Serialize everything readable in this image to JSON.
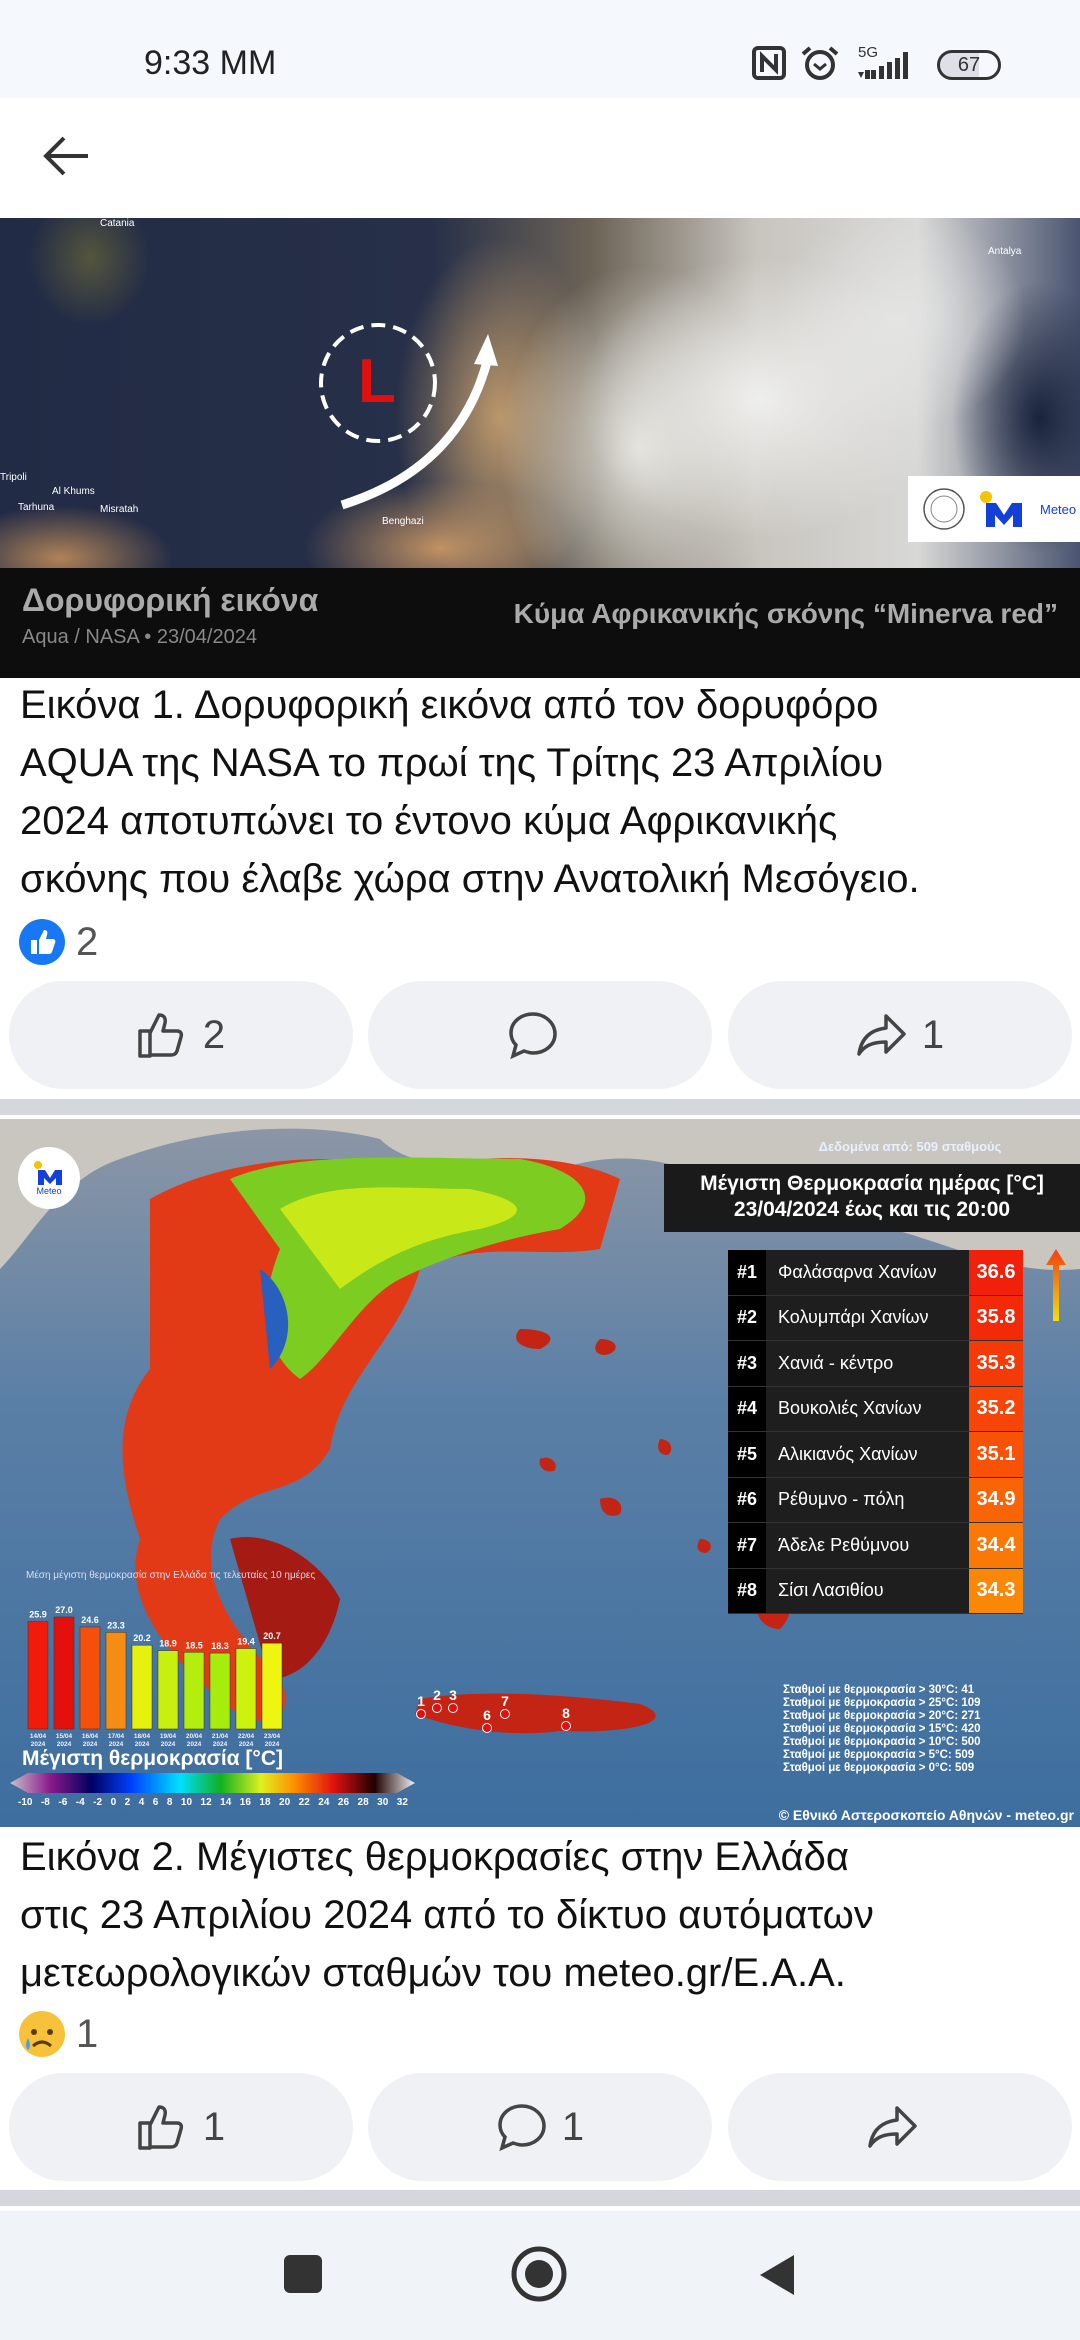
{
  "status": {
    "time": "9:33 MM",
    "network": "5G",
    "battery": "67"
  },
  "header": {
    "back_icon": "arrow-left-icon"
  },
  "post1": {
    "image": {
      "title": "Δορυφορική εικόνα",
      "source": "Aqua / NASA • 23/04/2024",
      "headline": "Κύμα Αφρικανικής σκόνης “Minerva red”",
      "low_label": "L",
      "places": [
        "Catania",
        "Antalya",
        "Tripoli",
        "Al Khums",
        "Tarhuna",
        "Misratah",
        "Benghazi"
      ],
      "logo_text": "Meteo"
    },
    "caption": [
      "Εικόνα 1. Δορυφορική εικόνα από τον δορυφόρο",
      "AQUA της NASA το πρωί της Τρίτης 23 Απριλίου",
      "2024 αποτυπώνει το έντονο κύμα Αφρικανικής",
      "σκόνης που έλαβε χώρα στην Ανατολική Μεσόγειο."
    ],
    "reaction_count": "2",
    "actions": {
      "like": "2",
      "comment": "",
      "share": "1"
    }
  },
  "post2": {
    "image": {
      "stations_note": "Δεδομένα από: 509 σταθμούς",
      "title": "Μέγιστη Θερμοκρασία ημέρας [°C]",
      "subtitle": "23/04/2024 έως και τις 20:00",
      "logo_text": "Meteo",
      "ranking": [
        {
          "rank": "#1",
          "name": "Φαλάσαρνα Χανίων",
          "value": "36.6",
          "color": "#f0200a"
        },
        {
          "rank": "#2",
          "name": "Κολυμπάρι Χανίων",
          "value": "35.8",
          "color": "#f22a08"
        },
        {
          "rank": "#3",
          "name": "Χανιά - κέντρο",
          "value": "35.3",
          "color": "#f43a06"
        },
        {
          "rank": "#4",
          "name": "Βουκολιές Χανίων",
          "value": "35.2",
          "color": "#f64506"
        },
        {
          "rank": "#5",
          "name": "Αλικιανός Χανίων",
          "value": "35.1",
          "color": "#f75206"
        },
        {
          "rank": "#6",
          "name": "Ρέθυμνο - πόλη",
          "value": "34.9",
          "color": "#f86406"
        },
        {
          "rank": "#7",
          "name": "Άδελε Ρεθύμνου",
          "value": "34.4",
          "color": "#f97806"
        },
        {
          "rank": "#8",
          "name": "Σίσι Λασιθίου",
          "value": "34.3",
          "color": "#fa8806"
        }
      ],
      "map_markers": [
        "1",
        "2",
        "3",
        "6",
        "7",
        "8"
      ],
      "stats": [
        "Σταθμοί με θερμοκρασία > 30°C: 41",
        "Σταθμοί με θερμοκρασία > 25°C: 109",
        "Σταθμοί με θερμοκρασία > 20°C: 271",
        "Σταθμοί με θερμοκρασία > 15°C: 420",
        "Σταθμοί με θερμοκρασία > 10°C: 500",
        "Σταθμοί με θερμοκρασία > 5°C: 509",
        "Σταθμοί με θερμοκρασία > 0°C: 509"
      ],
      "copyright": "© Εθνικό Αστεροσκοπείο Αθηνών - meteo.gr",
      "legend_title": "Μέγιστη θερμοκρασία [°C]",
      "legend_ticks": [
        "-10",
        "-8",
        "-6",
        "-4",
        "-2",
        "0",
        "2",
        "4",
        "6",
        "8",
        "10",
        "12",
        "14",
        "16",
        "18",
        "20",
        "22",
        "24",
        "26",
        "28",
        "30",
        "32"
      ]
    },
    "caption": [
      "Εικόνα 2. Μέγιστες θερμοκρασίες στην Ελλάδα",
      "στις 23 Απριλίου 2024 από το δίκτυο αυτόματων",
      "μετεωρολογικών σταθμών του meteo.gr/Ε.Α.Α."
    ],
    "reaction_count": "1",
    "actions": {
      "like": "1",
      "comment": "1",
      "share": ""
    }
  },
  "chart_data": {
    "type": "bar",
    "title": "Μέση μέγιστη θερμοκρασία στην Ελλάδα τις τελευταίες 10 ημέρες",
    "categories": [
      "14/04 2024",
      "15/04 2024",
      "16/04 2024",
      "17/04 2024",
      "18/04 2024",
      "19/04 2024",
      "20/04 2024",
      "21/04 2024",
      "22/04 2024",
      "23/04 2024"
    ],
    "values": [
      25.9,
      27.0,
      24.6,
      23.3,
      20.2,
      18.9,
      18.5,
      18.3,
      19.4,
      20.7
    ],
    "colors": [
      "#f21a0a",
      "#e4100e",
      "#f5500a",
      "#f78c12",
      "#e6f20e",
      "#c8f00e",
      "#b4ee0e",
      "#a6ec0c",
      "#cdf20e",
      "#eef510"
    ]
  }
}
